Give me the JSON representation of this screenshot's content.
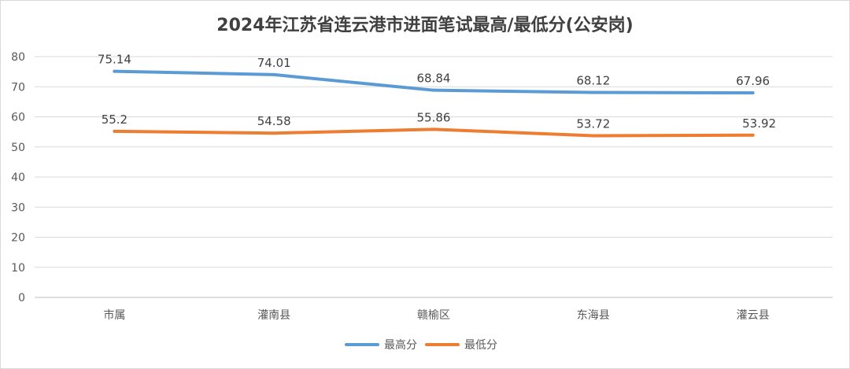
{
  "chart_data": {
    "type": "line",
    "title": "2024年江苏省连云港市进面笔试最高/最低分(公安岗)",
    "categories": [
      "市属",
      "灌南县",
      "赣榆区",
      "东海县",
      "灌云县"
    ],
    "series": [
      {
        "name": "最高分",
        "color": "#5b9bd5",
        "values": [
          75.14,
          74.01,
          68.84,
          68.12,
          67.96
        ],
        "labels": [
          "75.14",
          "74.01",
          "68.84",
          "68.12",
          "67.96"
        ]
      },
      {
        "name": "最低分",
        "color": "#ed7d31",
        "values": [
          55.2,
          54.58,
          55.86,
          53.72,
          53.92
        ],
        "labels": [
          "55.2",
          "54.58",
          "55.86",
          "53.72",
          "53.92"
        ]
      }
    ],
    "ylim": [
      0,
      80
    ],
    "yticks": [
      "0",
      "10",
      "20",
      "30",
      "40",
      "50",
      "60",
      "70",
      "80"
    ],
    "grid": true,
    "legend": "bottom-center"
  }
}
